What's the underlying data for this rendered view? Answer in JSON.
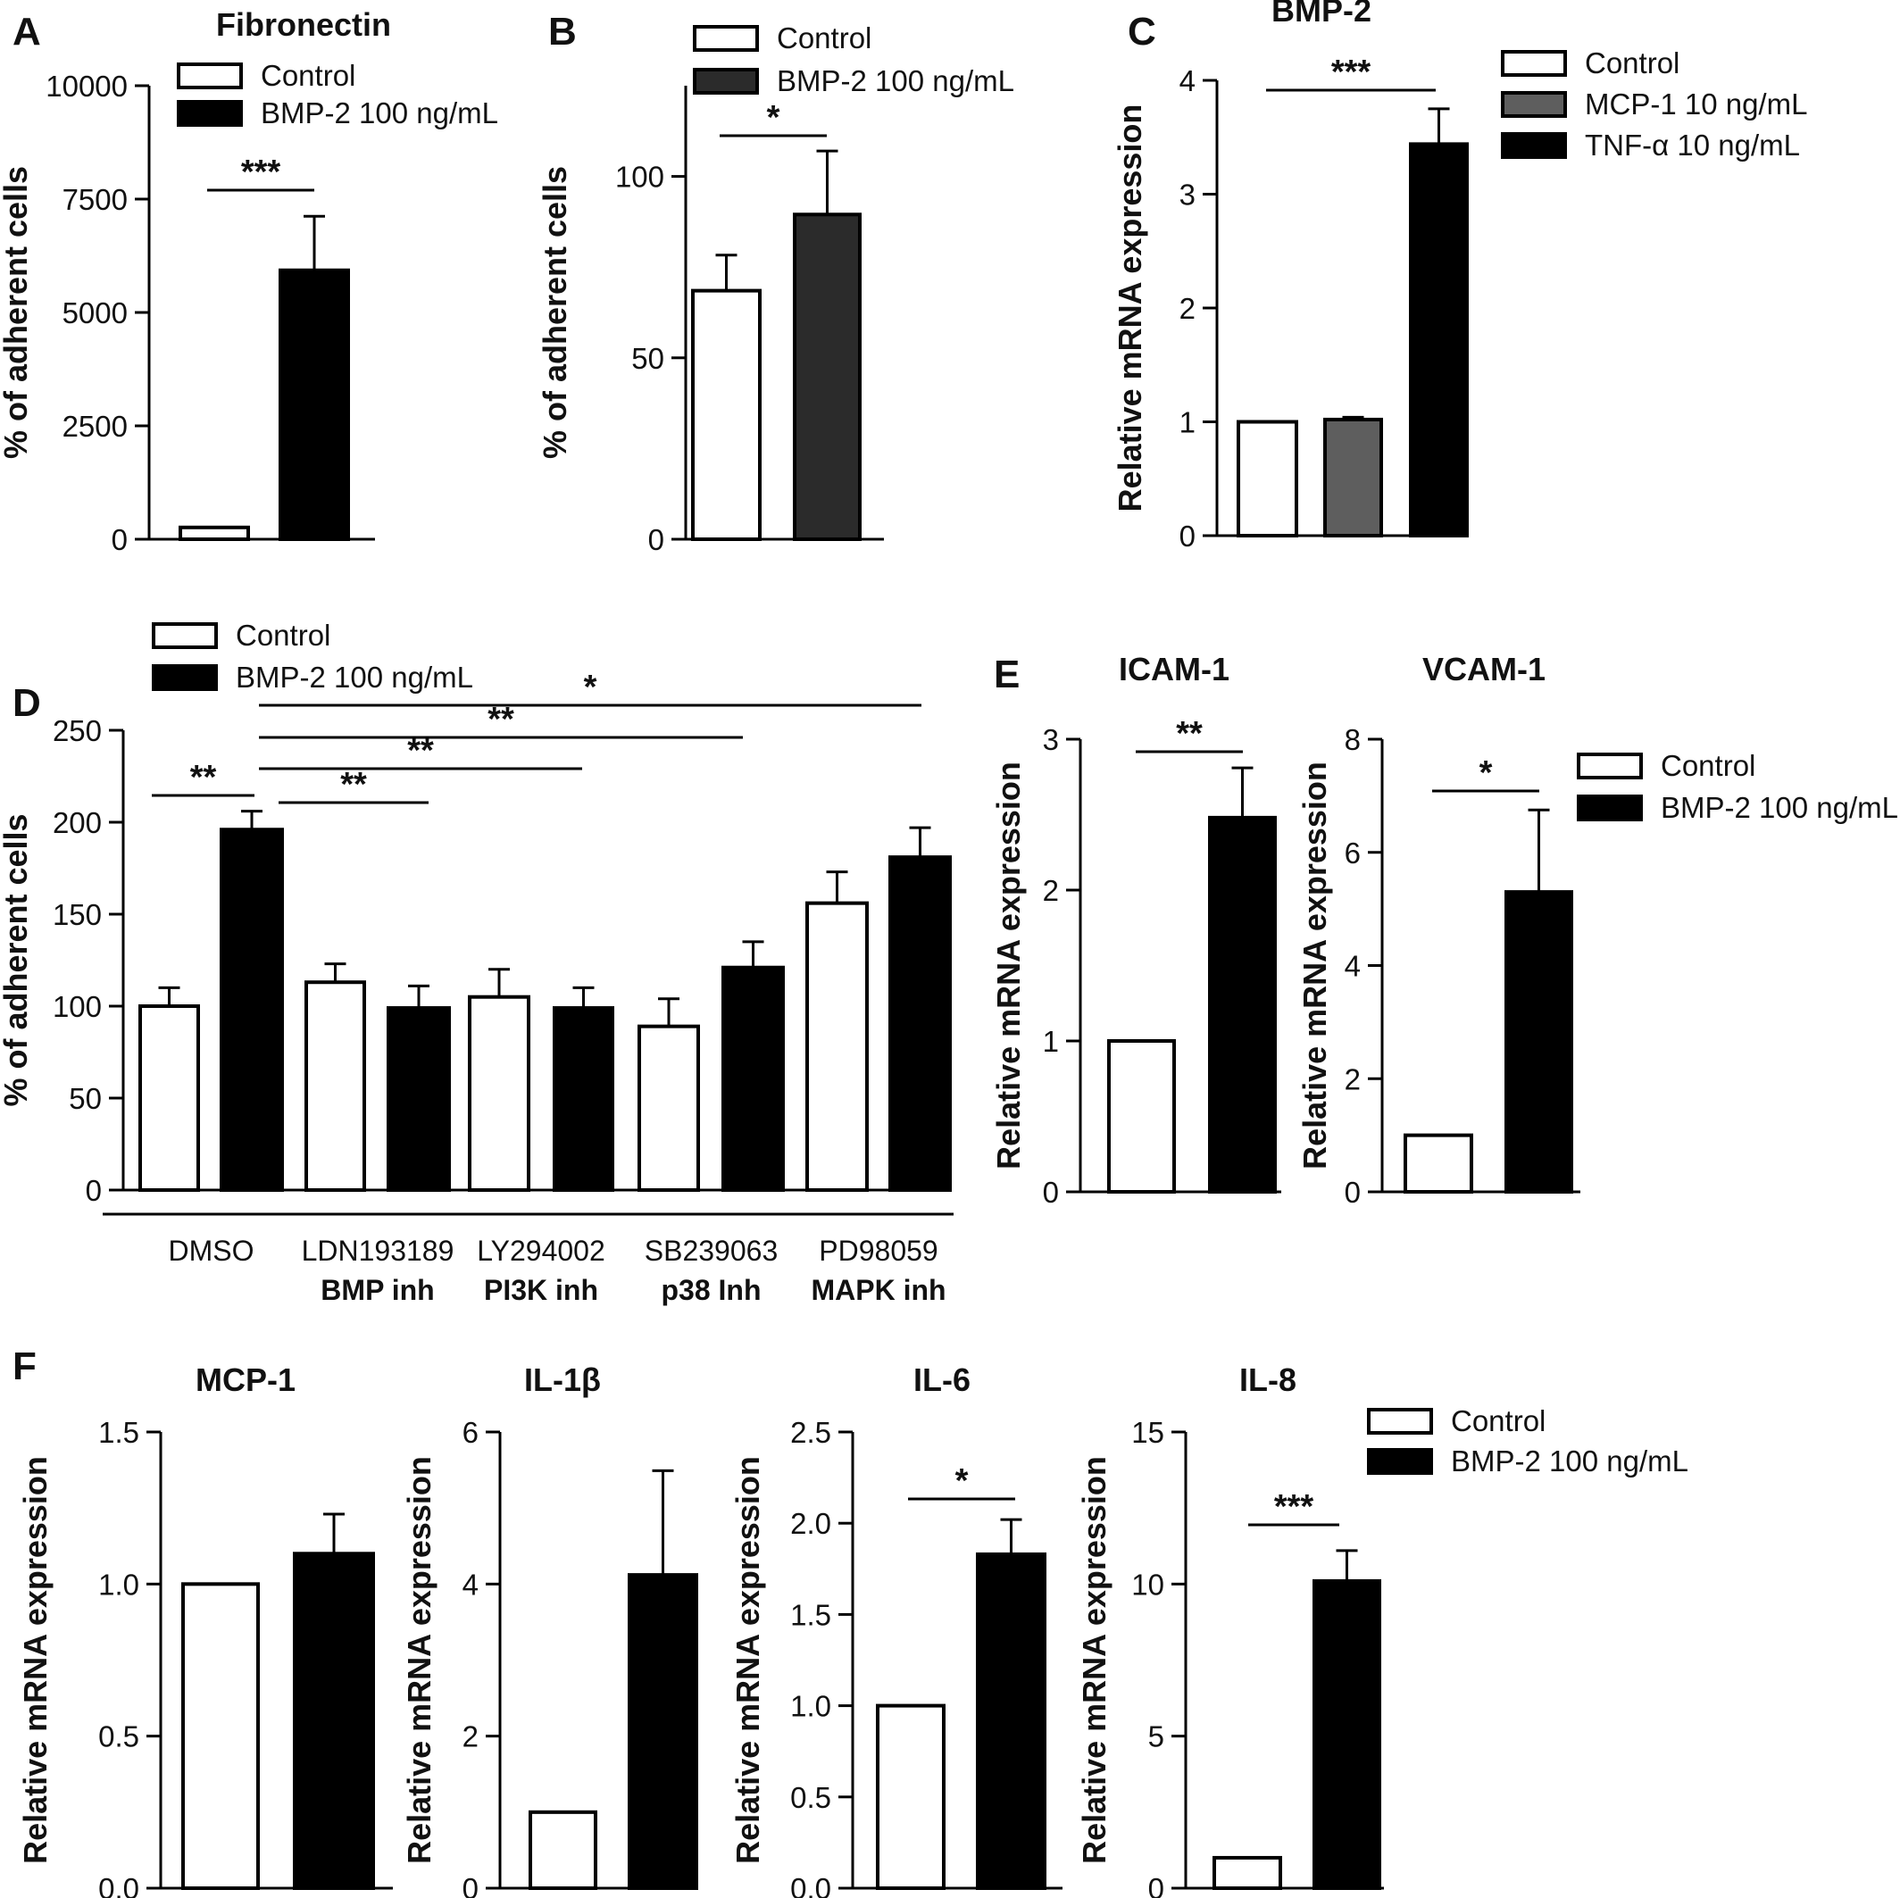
{
  "colors": {
    "control": "#ffffff",
    "bmp2": "#000000",
    "bmp2_panel_b": "#2b2b2b",
    "mcp1": "#5e5e5e",
    "tnf": "#000000",
    "stroke": "#000000"
  },
  "panels": [
    {
      "id": "A",
      "label": "A",
      "title": "Fibronectin",
      "ylabel": "% of adherent cells"
    },
    {
      "id": "B",
      "label": "B",
      "title": "",
      "ylabel": "% of adherent cells"
    },
    {
      "id": "C",
      "label": "C",
      "title": "BMP-2",
      "ylabel": "Relative mRNA expression"
    },
    {
      "id": "D",
      "label": "D",
      "title": "",
      "ylabel": "% of adherent cells"
    },
    {
      "id": "E",
      "label": "E",
      "title": "",
      "ylabel": ""
    },
    {
      "id": "F",
      "label": "F",
      "title": "",
      "ylabel": ""
    }
  ],
  "chart_data": [
    {
      "panel": "A",
      "type": "bar",
      "title": "Fibronectin",
      "xlabel": "",
      "ylabel": "% of adherent cells",
      "ylim": [
        0,
        10000
      ],
      "yticks": [
        0,
        2500,
        5000,
        7500,
        10000
      ],
      "legend": {
        "position": "top",
        "entries": [
          "Control",
          "BMP-2 100 ng/mL"
        ]
      },
      "series": [
        {
          "name": "Control",
          "values": [
            260
          ],
          "errors": [
            0
          ]
        },
        {
          "name": "BMP-2 100 ng/mL",
          "values": [
            5930
          ],
          "errors": [
            1190
          ]
        }
      ],
      "annotations": [
        {
          "text": "***",
          "from": "Control",
          "to": "BMP-2 100 ng/mL"
        }
      ]
    },
    {
      "panel": "B",
      "type": "bar",
      "title": "",
      "xlabel": "",
      "ylabel": "% of adherent cells",
      "ylim": [
        0,
        125
      ],
      "yticks": [
        0,
        50,
        100
      ],
      "legend": {
        "position": "top",
        "entries": [
          "Control",
          "BMP-2 100 ng/mL"
        ]
      },
      "series": [
        {
          "name": "Control",
          "values": [
            68.5
          ],
          "errors": [
            9.8
          ]
        },
        {
          "name": "BMP-2 100 ng/mL",
          "values": [
            89.5
          ],
          "errors": [
            17.5
          ]
        }
      ],
      "annotations": [
        {
          "text": "*",
          "from": "Control",
          "to": "BMP-2 100 ng/mL"
        }
      ]
    },
    {
      "panel": "C",
      "type": "bar",
      "title": "BMP-2",
      "xlabel": "",
      "ylabel": "Relative mRNA expression",
      "ylim": [
        0,
        4
      ],
      "yticks": [
        0,
        1,
        2,
        3,
        4
      ],
      "legend": {
        "position": "top-right",
        "entries": [
          "Control",
          "MCP-1 10 ng/mL",
          "TNF-α 10 ng/mL"
        ]
      },
      "series": [
        {
          "name": "Control",
          "values": [
            1.0
          ],
          "errors": [
            0
          ]
        },
        {
          "name": "MCP-1 10 ng/mL",
          "values": [
            1.02
          ],
          "errors": [
            0.02
          ]
        },
        {
          "name": "TNF-α 10 ng/mL",
          "values": [
            3.44
          ],
          "errors": [
            0.31
          ]
        }
      ],
      "annotations": [
        {
          "text": "***",
          "from": "Control",
          "to": "TNF-α 10 ng/mL"
        }
      ]
    },
    {
      "panel": "D",
      "type": "bar",
      "title": "",
      "xlabel": "",
      "ylabel": "% of adherent cells",
      "ylim": [
        0,
        250
      ],
      "yticks": [
        0,
        50,
        100,
        150,
        200,
        250
      ],
      "legend": {
        "position": "top-left",
        "entries": [
          "Control",
          "BMP-2 100 ng/mL"
        ]
      },
      "categories": [
        "DMSO",
        "LDN193189",
        "LY294002",
        "SB239063",
        "PD98059"
      ],
      "category_sublabels": [
        "",
        "BMP inh",
        "PI3K inh",
        "p38 Inh",
        "MAPK inh"
      ],
      "series": [
        {
          "name": "Control",
          "values": [
            100,
            113,
            105,
            89,
            156
          ],
          "errors": [
            10,
            10,
            15,
            15,
            17
          ]
        },
        {
          "name": "BMP-2 100 ng/mL",
          "values": [
            196,
            99,
            99,
            121,
            181
          ],
          "errors": [
            10,
            12,
            11,
            14,
            16
          ]
        }
      ],
      "annotations": [
        {
          "text": "**",
          "from": "DMSO Control",
          "to": "DMSO BMP-2"
        },
        {
          "text": "**",
          "from": "DMSO BMP-2",
          "to": "LDN193189 BMP-2"
        },
        {
          "text": "**",
          "from": "DMSO BMP-2",
          "to": "LY294002 BMP-2"
        },
        {
          "text": "**",
          "from": "DMSO BMP-2",
          "to": "SB239063 BMP-2"
        },
        {
          "text": "*",
          "from": "DMSO BMP-2",
          "to": "PD98059 BMP-2"
        }
      ]
    },
    {
      "panel": "E",
      "type": "bar",
      "title": "ICAM-1",
      "xlabel": "",
      "ylabel": "Relative mRNA expression",
      "ylim": [
        0,
        3
      ],
      "yticks": [
        0,
        1,
        2,
        3
      ],
      "series": [
        {
          "name": "Control",
          "values": [
            1.0
          ],
          "errors": [
            0
          ]
        },
        {
          "name": "BMP-2 100 ng/mL",
          "values": [
            2.48
          ],
          "errors": [
            0.33
          ]
        }
      ],
      "annotations": [
        {
          "text": "**",
          "from": "Control",
          "to": "BMP-2 100 ng/mL"
        }
      ]
    },
    {
      "panel": "E",
      "type": "bar",
      "title": "VCAM-1",
      "xlabel": "",
      "ylabel": "Relative mRNA expression",
      "ylim": [
        0,
        8
      ],
      "yticks": [
        0,
        2,
        4,
        6,
        8
      ],
      "legend": {
        "position": "top-right",
        "entries": [
          "Control",
          "BMP-2 100 ng/mL"
        ]
      },
      "series": [
        {
          "name": "Control",
          "values": [
            1.0
          ],
          "errors": [
            0
          ]
        },
        {
          "name": "BMP-2 100 ng/mL",
          "values": [
            5.3
          ],
          "errors": [
            1.45
          ]
        }
      ],
      "annotations": [
        {
          "text": "*",
          "from": "Control",
          "to": "BMP-2 100 ng/mL"
        }
      ]
    },
    {
      "panel": "F",
      "type": "bar",
      "title": "MCP-1",
      "xlabel": "",
      "ylabel": "Relative mRNA expression",
      "ylim": [
        0,
        1.5
      ],
      "yticks": [
        "0.0",
        "0.5",
        "1.0",
        "1.5"
      ],
      "series": [
        {
          "name": "Control",
          "values": [
            1.0
          ],
          "errors": [
            0
          ]
        },
        {
          "name": "BMP-2 100 ng/mL",
          "values": [
            1.1
          ],
          "errors": [
            0.13
          ]
        }
      ],
      "annotations": []
    },
    {
      "panel": "F",
      "type": "bar",
      "title": "IL-1β",
      "xlabel": "",
      "ylabel": "Relative mRNA expression",
      "ylim": [
        0,
        6
      ],
      "yticks": [
        0,
        2,
        4,
        6
      ],
      "series": [
        {
          "name": "Control",
          "values": [
            1.0
          ],
          "errors": [
            0
          ]
        },
        {
          "name": "BMP-2 100 ng/mL",
          "values": [
            4.12
          ],
          "errors": [
            1.37
          ]
        }
      ],
      "annotations": []
    },
    {
      "panel": "F",
      "type": "bar",
      "title": "IL-6",
      "xlabel": "",
      "ylabel": "Relative mRNA expression",
      "ylim": [
        0,
        2.5
      ],
      "yticks": [
        "0.0",
        "0.5",
        "1.0",
        "1.5",
        "2.0",
        "2.5"
      ],
      "series": [
        {
          "name": "Control",
          "values": [
            1.0
          ],
          "errors": [
            0
          ]
        },
        {
          "name": "BMP-2 100 ng/mL",
          "values": [
            1.83
          ],
          "errors": [
            0.19
          ]
        }
      ],
      "annotations": [
        {
          "text": "*",
          "from": "Control",
          "to": "BMP-2 100 ng/mL"
        }
      ]
    },
    {
      "panel": "F",
      "type": "bar",
      "title": "IL-8",
      "xlabel": "",
      "ylabel": "Relative mRNA expression",
      "ylim": [
        0,
        15
      ],
      "yticks": [
        0,
        5,
        10,
        15
      ],
      "legend": {
        "position": "top-right",
        "entries": [
          "Control",
          "BMP-2 100 ng/mL"
        ]
      },
      "series": [
        {
          "name": "Control",
          "values": [
            1.0
          ],
          "errors": [
            0
          ]
        },
        {
          "name": "BMP-2 100 ng/mL",
          "values": [
            10.1
          ],
          "errors": [
            1.0
          ]
        }
      ],
      "annotations": [
        {
          "text": "***",
          "from": "Control",
          "to": "BMP-2 100 ng/mL"
        }
      ]
    }
  ]
}
